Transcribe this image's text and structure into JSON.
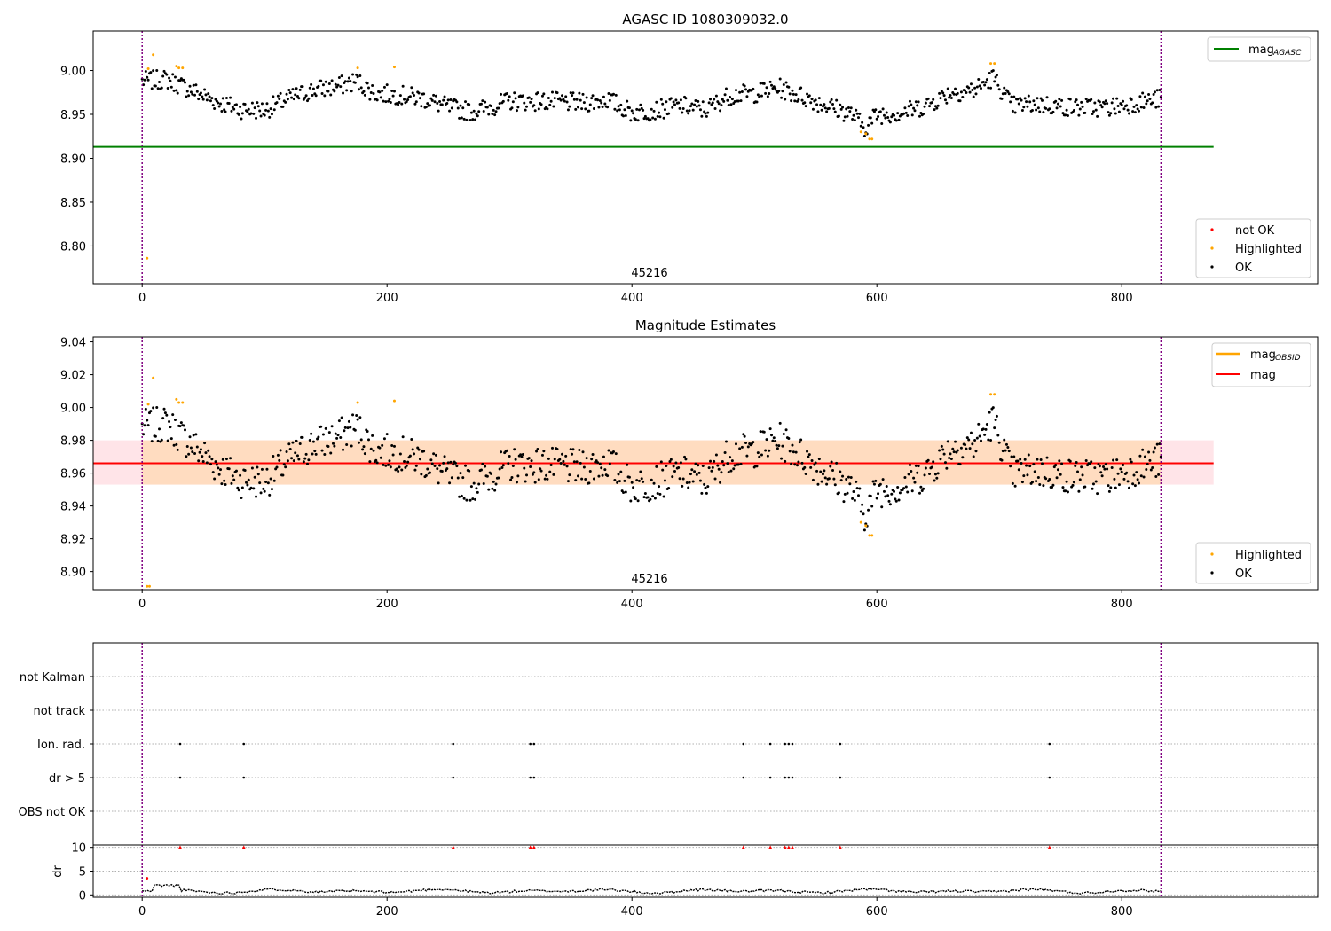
{
  "colors": {
    "ok": "#000000",
    "highlighted": "#ffa500",
    "not_ok": "#ff0000",
    "agasc_line": "#008000",
    "mag_line": "#ff0000",
    "obsid_line": "#ffa500",
    "band_orange": "#ffdab9",
    "band_pink": "#ffe4e8",
    "vline": "#800080",
    "grid": "#b0b0b0"
  },
  "chart_data": [
    {
      "type": "scatter",
      "title": "AGASC ID 1080309032.0",
      "obsid_label": "45216",
      "xlim": [
        -40,
        960
      ],
      "ylim": [
        8.757,
        9.045
      ],
      "x_ticks": [
        0,
        200,
        400,
        600,
        800
      ],
      "x_tick_labels": [
        "0",
        "200",
        "400",
        "600",
        "800"
      ],
      "y_ticks": [
        8.8,
        8.85,
        8.9,
        8.95,
        9.0
      ],
      "y_tick_labels": [
        "8.80",
        "8.85",
        "8.90",
        "8.95",
        "9.00"
      ],
      "obs_boundaries": [
        0,
        832
      ],
      "mag_agasc": 8.913,
      "mag_agasc_xrange": [
        -40,
        875
      ],
      "legend_lines": [
        {
          "label": "mag",
          "subscript": "AGASC",
          "color": "#008000"
        }
      ],
      "legend_markers": [
        {
          "label": "not OK",
          "color": "#ff0000"
        },
        {
          "label": "Highlighted",
          "color": "#ffa500"
        },
        {
          "label": "OK",
          "color": "#000000"
        }
      ],
      "highlighted_points": [
        [
          4,
          8.786
        ],
        [
          5,
          9.002
        ],
        [
          9,
          9.018
        ],
        [
          28,
          9.005
        ],
        [
          30,
          9.003
        ],
        [
          33,
          9.003
        ],
        [
          176,
          9.003
        ],
        [
          206,
          9.004
        ],
        [
          587,
          8.93
        ],
        [
          591,
          8.928
        ],
        [
          594,
          8.922
        ],
        [
          596,
          8.922
        ],
        [
          693,
          9.008
        ],
        [
          696,
          9.008
        ]
      ]
    },
    {
      "type": "scatter",
      "title": "Magnitude Estimates",
      "obsid_label": "45216",
      "xlim": [
        -40,
        960
      ],
      "ylim": [
        8.889,
        9.043
      ],
      "x_ticks": [
        0,
        200,
        400,
        600,
        800
      ],
      "x_tick_labels": [
        "0",
        "200",
        "400",
        "600",
        "800"
      ],
      "y_ticks": [
        8.9,
        8.92,
        8.94,
        8.96,
        8.98,
        9.0,
        9.02,
        9.04
      ],
      "y_tick_labels": [
        "8.90",
        "8.92",
        "8.94",
        "8.96",
        "8.98",
        "9.00",
        "9.02",
        "9.04"
      ],
      "obs_boundaries": [
        0,
        832
      ],
      "mag": 8.966,
      "mag_band_pink": [
        8.953,
        8.98
      ],
      "mag_band_orange": [
        8.953,
        8.98
      ],
      "band_xrange": [
        -40,
        875
      ],
      "band_orange_xrange": [
        0,
        832
      ],
      "mag_obsid": 8.966,
      "legend_lines": [
        {
          "label": "mag",
          "subscript": "OBSID",
          "color": "#ffa500"
        },
        {
          "label": "mag",
          "subscript": "",
          "color": "#ff0000"
        }
      ],
      "legend_markers": [
        {
          "label": "Highlighted",
          "color": "#ffa500"
        },
        {
          "label": "OK",
          "color": "#000000"
        }
      ],
      "highlighted_points": [
        [
          4,
          8.891
        ],
        [
          6,
          8.891
        ],
        [
          5,
          9.002
        ],
        [
          9,
          9.018
        ],
        [
          28,
          9.005
        ],
        [
          30,
          9.003
        ],
        [
          33,
          9.003
        ],
        [
          176,
          9.003
        ],
        [
          206,
          9.004
        ],
        [
          587,
          8.93
        ],
        [
          591,
          8.928
        ],
        [
          594,
          8.922
        ],
        [
          596,
          8.922
        ],
        [
          693,
          9.008
        ],
        [
          696,
          9.008
        ]
      ]
    },
    {
      "type": "scatter",
      "title": "",
      "xlim": [
        -40,
        960
      ],
      "categories": [
        "not Kalman",
        "not track",
        "Ion. rad.",
        "dr > 5",
        "OBS not OK"
      ],
      "flag_points": {
        "Ion. rad.": [
          31,
          83,
          254,
          317,
          320,
          491,
          513,
          525,
          528,
          531,
          570,
          741
        ],
        "dr > 5": [
          31,
          83,
          254,
          317,
          320,
          491,
          513,
          525,
          528,
          531,
          570,
          741
        ]
      },
      "obs_boundaries": [
        0,
        832
      ]
    },
    {
      "type": "line",
      "ylabel": "dr",
      "xlim": [
        -40,
        960
      ],
      "ylim": [
        -0.5,
        10.5
      ],
      "x_ticks": [
        0,
        200,
        400,
        600,
        800
      ],
      "x_tick_labels": [
        "0",
        "200",
        "400",
        "600",
        "800"
      ],
      "y_ticks": [
        0,
        5,
        10
      ],
      "y_tick_labels": [
        "0",
        "5",
        "10"
      ],
      "clipped_at": 10,
      "clipped_x": [
        31,
        83,
        254,
        317,
        320,
        491,
        513,
        525,
        528,
        531,
        570,
        741
      ],
      "outlier_points": [
        [
          4,
          3.5
        ]
      ],
      "obs_boundaries": [
        0,
        832
      ]
    }
  ]
}
